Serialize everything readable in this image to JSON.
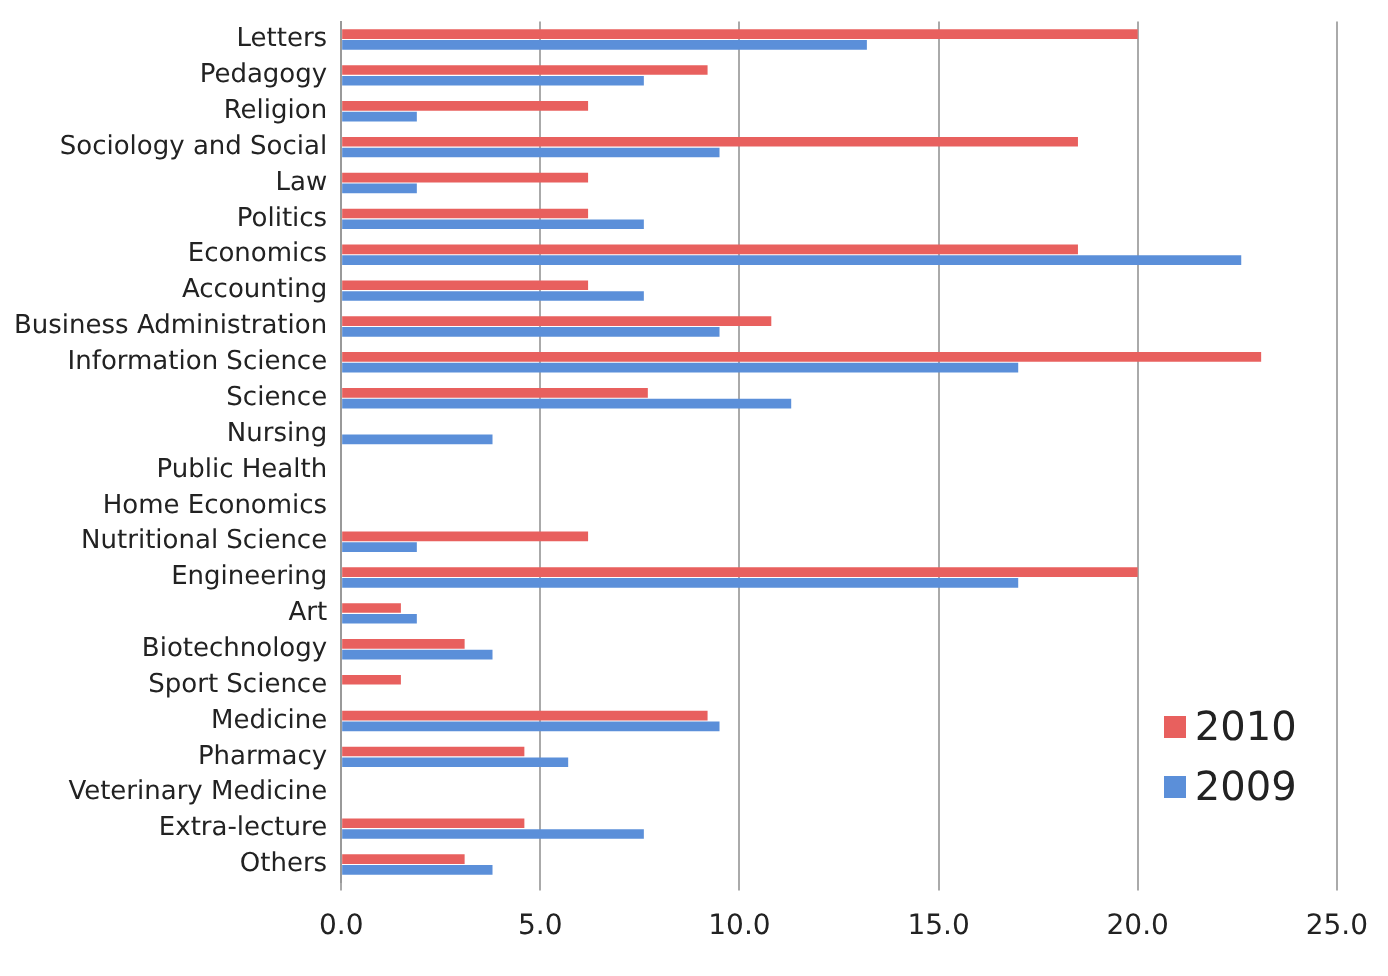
{
  "chart_data": {
    "type": "bar",
    "orientation": "horizontal",
    "categories": [
      "Letters",
      "Pedagogy",
      "Religion",
      "Sociology and Social",
      "Law",
      "Politics",
      "Economics",
      "Accounting",
      "Business Administration",
      "Information Science",
      "Science",
      "Nursing",
      "Public Health",
      "Home Economics",
      "Nutritional Science",
      "Engineering",
      "Art",
      "Biotechnology",
      "Sport Science",
      "Medicine",
      "Pharmacy",
      "Veterinary Medicine",
      "Extra-lecture",
      "Others"
    ],
    "series": [
      {
        "name": "2010",
        "color": "#e8605e",
        "values": [
          20.0,
          9.2,
          6.2,
          18.5,
          6.2,
          6.2,
          18.5,
          6.2,
          10.8,
          23.1,
          7.7,
          0,
          0,
          0,
          6.2,
          20.0,
          1.5,
          3.1,
          1.5,
          9.2,
          4.6,
          0,
          4.6,
          3.1
        ]
      },
      {
        "name": "2009",
        "color": "#5b8fd9",
        "values": [
          13.2,
          7.6,
          1.9,
          9.5,
          1.9,
          7.6,
          22.6,
          7.6,
          9.5,
          17.0,
          11.3,
          3.8,
          0,
          0,
          1.9,
          17.0,
          1.9,
          3.8,
          0,
          9.5,
          5.7,
          0,
          7.6,
          3.8
        ]
      }
    ],
    "xlim": [
      0,
      25
    ],
    "xticks": [
      {
        "value": 0,
        "label": "0.0"
      },
      {
        "value": 5,
        "label": "5.0"
      },
      {
        "value": 10,
        "label": "10.0"
      },
      {
        "value": 15,
        "label": "15.0"
      },
      {
        "value": 20,
        "label": "20.0"
      },
      {
        "value": 25,
        "label": "25.0"
      }
    ],
    "grid": "x",
    "legend": "bottom right"
  }
}
